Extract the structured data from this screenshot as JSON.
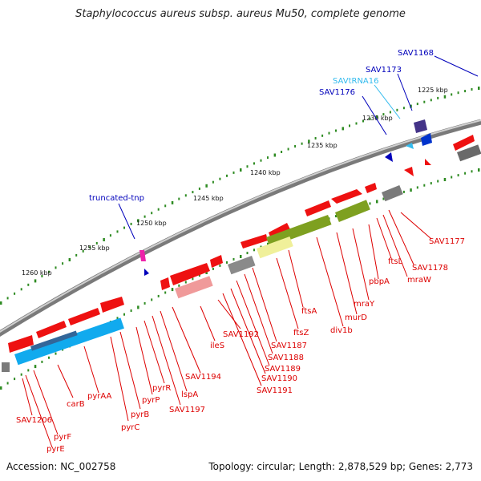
{
  "title": "Staphylococcus aureus subsp. aureus Mu50, complete genome",
  "footer": {
    "accession": "Accession: NC_002758",
    "summary": "Topology: circular; Length: 2,878,529 bp; Genes: 2,773"
  },
  "colors": {
    "backbone": "#8a8a8a",
    "forward_gene": "#ee1111",
    "reverse_gene": "#ee1111",
    "label_red": "#dd0000",
    "label_blue": "#0000bb",
    "label_cyan": "#33bbee",
    "scale_dots": "#2e8b22",
    "cog_blue": "#11aaee",
    "cog_olive": "#7ea020",
    "cog_yellow": "#f0f09a",
    "cog_gray": "#7a7a7a",
    "cog_pink": "#f09a9a"
  },
  "scale": {
    "ticks": [
      "1225 kbp",
      "1230 kbp",
      "1235 kbp",
      "1240 kbp",
      "1245 kbp",
      "1250 kbp",
      "1255 kbp",
      "1260 kbp"
    ]
  },
  "gene_labels": {
    "bottom": [
      "SAV1177",
      "SAV1178",
      "mraW",
      "ftsL",
      "pbpA",
      "mraY",
      "murD",
      "div1b",
      "ftsA",
      "ftsZ",
      "SAV1187",
      "SAV1188",
      "SAV1189",
      "SAV1190",
      "SAV1191",
      "SAV1192",
      "ileS",
      "SAV1194",
      "lspA",
      "SAV1197",
      "pyrR",
      "pyrP",
      "pyrB",
      "pyrC",
      "pyrAA",
      "carB",
      "pyrF",
      "pyrE",
      "SAV1206"
    ],
    "top": [
      "SAV1168",
      "SAV1173",
      "SAVtRNA16",
      "SAV1176",
      "truncated-tnp"
    ]
  }
}
